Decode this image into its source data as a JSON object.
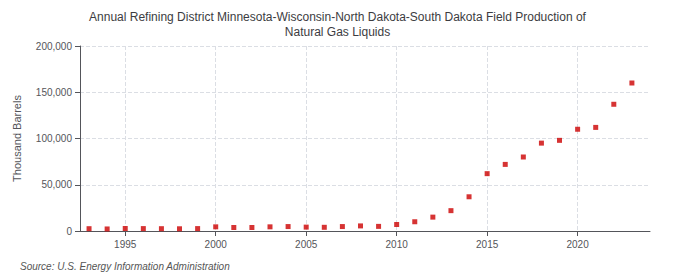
{
  "chart_data": {
    "type": "scatter",
    "title": "Annual Refining District Minnesota-Wisconsin-North Dakota-South Dakota Field Production of\nNatural Gas Liquids",
    "ylabel": "Thousand Barrels",
    "annotations": [
      "Source: U.S. Energy Information Administration"
    ],
    "x": [
      1993,
      1994,
      1995,
      1996,
      1997,
      1998,
      1999,
      2000,
      2001,
      2002,
      2003,
      2004,
      2005,
      2006,
      2007,
      2008,
      2009,
      2010,
      2011,
      2012,
      2013,
      2014,
      2015,
      2016,
      2017,
      2018,
      2019,
      2020,
      2021,
      2022,
      2023
    ],
    "values": [
      2500,
      2200,
      2700,
      2600,
      2500,
      2400,
      2600,
      4500,
      3800,
      3800,
      4500,
      4800,
      4200,
      4000,
      4800,
      5500,
      5000,
      7000,
      10000,
      15000,
      22000,
      37000,
      62000,
      72000,
      80000,
      95000,
      98000,
      110000,
      112000,
      137000,
      160000
    ],
    "color": "#cc0000",
    "marker": "square",
    "xlim": [
      1992.5,
      2024
    ],
    "xticks": [
      1995,
      2000,
      2005,
      2010,
      2015,
      2020
    ],
    "ylim": [
      0,
      200000
    ],
    "yticks": [
      0,
      {
        "value": 50000,
        "label": "50,000"
      },
      {
        "value": 100000,
        "label": "100,000"
      },
      {
        "value": 150000,
        "label": "150,000"
      },
      {
        "value": 200000,
        "label": "200,000"
      }
    ],
    "grid": true
  }
}
